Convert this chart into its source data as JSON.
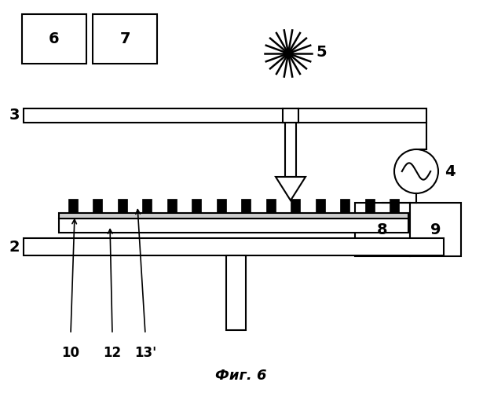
{
  "bg_color": "#ffffff",
  "line_color": "#000000",
  "figure_label": "Фиг. 6",
  "lw": 1.5
}
